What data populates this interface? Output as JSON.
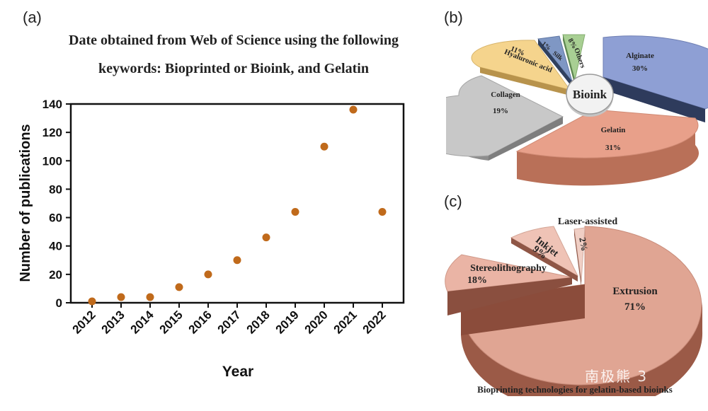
{
  "panels": {
    "a": "(a)",
    "b": "(b)",
    "c": "(c)"
  },
  "chart_data": [
    {
      "type": "scatter",
      "title_line1": "Date obtained from Web of Science using the following",
      "title_line2": "keywords: Bioprinted or Bioink, and Gelatin",
      "xlabel": "Year",
      "ylabel": "Number of publications",
      "ylim": [
        0,
        140
      ],
      "yticks": [
        0,
        20,
        40,
        60,
        80,
        100,
        120,
        140
      ],
      "x": [
        "2012",
        "2013",
        "2014",
        "2015",
        "2016",
        "2017",
        "2018",
        "2019",
        "2020",
        "2021",
        "2022"
      ],
      "y": [
        1,
        4,
        4,
        11,
        20,
        30,
        46,
        64,
        110,
        136,
        64
      ],
      "marker_color": "#c06a1b"
    },
    {
      "type": "pie",
      "center_label": "Bioink",
      "slices": [
        {
          "label": "Alginate",
          "value_label": "30%",
          "value": 30,
          "color": "#8e9fd4"
        },
        {
          "label": "Gelatin",
          "value_label": "31%",
          "value": 31,
          "color": "#e8a08a"
        },
        {
          "label": "Collagen",
          "value_label": "19%",
          "value": 19,
          "color": "#c6c6c6"
        },
        {
          "label": "Hyaluronic acid",
          "value_label": "11%",
          "value": 11,
          "color": "#f5d48d"
        },
        {
          "label": "Silk",
          "value_label": "1%",
          "value": 1,
          "color": "#7f97c4"
        },
        {
          "label": "Others",
          "value_label": "8%",
          "value": 8,
          "color": "#a8cf93"
        }
      ]
    },
    {
      "type": "pie",
      "caption": "Bioprinting technologies for gelatin-based bioinks",
      "slices": [
        {
          "label": "Extrusion",
          "value_label": "71%",
          "value": 71,
          "color": "#e0a593"
        },
        {
          "label": "Stereolithography",
          "value_label": "18%",
          "value": 18,
          "color": "#eab4a5"
        },
        {
          "label": "Inkjet",
          "value_label": "9%",
          "value": 9,
          "color": "#efc3b6"
        },
        {
          "label": "Laser-assisted",
          "value_label": "2%",
          "value": 2,
          "color": "#f0cfc5"
        }
      ]
    }
  ],
  "watermark": "南极熊 3"
}
